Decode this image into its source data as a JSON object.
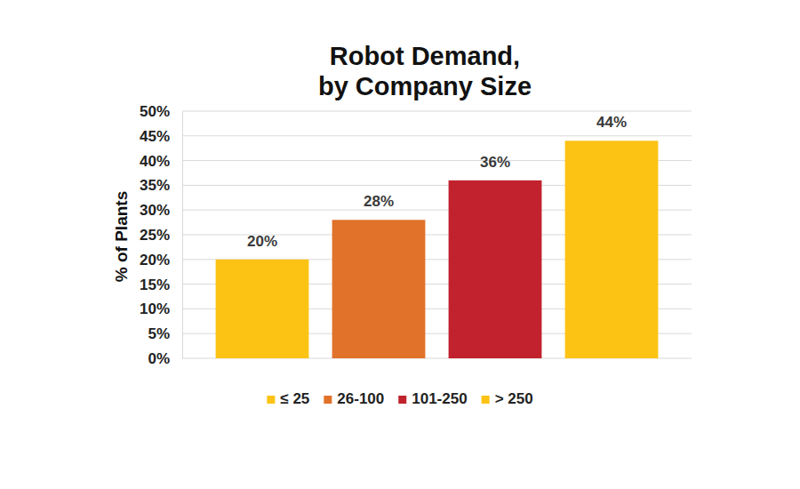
{
  "chart_data": {
    "type": "bar",
    "title": "Robot Demand,\nby Company Size",
    "y_label": "% of Plants",
    "categories": [
      "≤ 25",
      "26-100",
      "101-250",
      "> 250"
    ],
    "values": [
      20,
      28,
      36,
      44
    ],
    "value_labels": [
      "20%",
      "28%",
      "36%",
      "44%"
    ],
    "colors": [
      "#fcc314",
      "#e1722a",
      "#c1222d",
      "#fcc314"
    ],
    "ylim": [
      0,
      50
    ],
    "yticks": [
      {
        "value": 0,
        "label": "0%"
      },
      {
        "value": 5,
        "label": "5%"
      },
      {
        "value": 10,
        "label": "10%"
      },
      {
        "value": 15,
        "label": "15%"
      },
      {
        "value": 20,
        "label": "20%"
      },
      {
        "value": 25,
        "label": "25%"
      },
      {
        "value": 30,
        "label": "30%"
      },
      {
        "value": 35,
        "label": "35%"
      },
      {
        "value": 40,
        "label": "40%"
      },
      {
        "value": 45,
        "label": "45%"
      },
      {
        "value": 50,
        "label": "50%"
      }
    ],
    "grid": true,
    "data_labels": true,
    "tick_labels": "y",
    "legend": "bottom"
  }
}
